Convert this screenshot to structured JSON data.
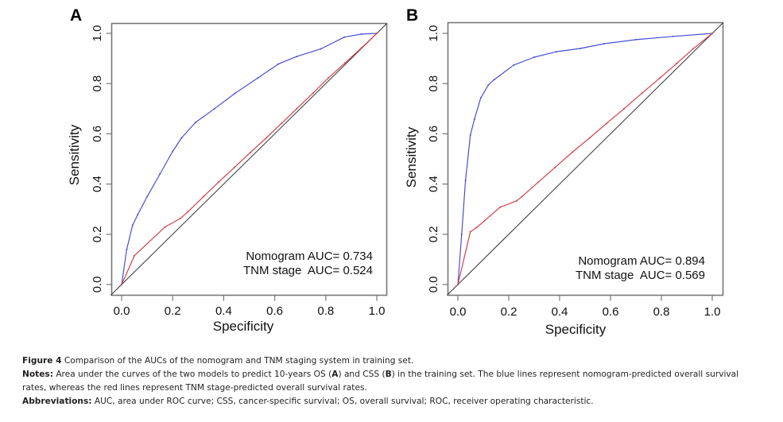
{
  "chart_data": [
    {
      "type": "line",
      "panel_label": "A",
      "title": "",
      "xlabel": "Specificity",
      "ylabel": "Sensitivity",
      "xlim": [
        0,
        1
      ],
      "ylim": [
        0,
        1
      ],
      "x_ticks": [
        "0.0",
        "0.2",
        "0.4",
        "0.6",
        "0.8",
        "1.0"
      ],
      "y_ticks": [
        "0.0",
        "0.2",
        "0.4",
        "0.6",
        "0.8",
        "1.0"
      ],
      "grid": false,
      "annotations": [
        "Nomogram AUC= 0.734",
        "TNM stage  AUC= 0.524"
      ],
      "annotation_placement": "bottom-right",
      "series": [
        {
          "name": "Nomogram",
          "color": "#4a4fd0",
          "x": [
            0.0,
            0.02,
            0.043,
            0.063,
            0.1,
            0.15,
            0.2,
            0.235,
            0.29,
            0.364,
            0.444,
            0.533,
            0.614,
            0.686,
            0.78,
            0.873,
            0.94,
            1.0
          ],
          "y": [
            0.0,
            0.14,
            0.236,
            0.278,
            0.35,
            0.44,
            0.53,
            0.584,
            0.646,
            0.7,
            0.761,
            0.822,
            0.878,
            0.908,
            0.938,
            0.985,
            0.997,
            1.0
          ]
        },
        {
          "name": "TNM stage",
          "color": "#d0424a",
          "x": [
            0.0,
            0.05,
            0.17,
            0.23,
            0.26,
            0.321,
            0.38,
            0.442,
            0.504,
            0.567,
            0.627,
            0.686,
            0.75,
            0.81,
            0.875,
            0.94,
            1.0
          ],
          "y": [
            0.0,
            0.115,
            0.229,
            0.263,
            0.29,
            0.35,
            0.408,
            0.466,
            0.525,
            0.584,
            0.642,
            0.7,
            0.762,
            0.822,
            0.882,
            0.942,
            1.0
          ]
        },
        {
          "name": "Reference",
          "color": "#333333",
          "x": [
            0.0,
            1.0
          ],
          "y": [
            0.0,
            1.0
          ]
        }
      ]
    },
    {
      "type": "line",
      "panel_label": "B",
      "title": "",
      "xlabel": "Specificity",
      "ylabel": "Sensitivity",
      "xlim": [
        0,
        1
      ],
      "ylim": [
        0,
        1
      ],
      "x_ticks": [
        "0.0",
        "0.2",
        "0.4",
        "0.6",
        "0.8",
        "1.0"
      ],
      "y_ticks": [
        "0.0",
        "0.2",
        "0.4",
        "0.6",
        "0.8",
        "1.0"
      ],
      "grid": false,
      "annotations": [
        "Nomogram AUC= 0.894",
        "TNM stage  AUC= 0.569"
      ],
      "annotation_placement": "bottom-right",
      "series": [
        {
          "name": "Nomogram",
          "color": "#4a4fd0",
          "x": [
            0.0,
            0.015,
            0.03,
            0.049,
            0.065,
            0.09,
            0.12,
            0.143,
            0.22,
            0.3,
            0.387,
            0.481,
            0.575,
            0.7,
            0.846,
            1.0
          ],
          "y": [
            0.0,
            0.2,
            0.415,
            0.595,
            0.658,
            0.743,
            0.795,
            0.816,
            0.874,
            0.905,
            0.927,
            0.94,
            0.959,
            0.975,
            0.988,
            1.0
          ]
        },
        {
          "name": "TNM stage",
          "color": "#d0424a",
          "x": [
            0.0,
            0.049,
            0.075,
            0.166,
            0.231,
            0.252,
            0.315,
            0.382,
            0.45,
            0.518,
            0.585,
            0.653,
            0.724,
            0.794,
            0.86,
            0.924,
            1.0
          ],
          "y": [
            0.0,
            0.21,
            0.228,
            0.308,
            0.333,
            0.35,
            0.407,
            0.466,
            0.527,
            0.584,
            0.642,
            0.7,
            0.762,
            0.822,
            0.88,
            0.938,
            1.0
          ]
        },
        {
          "name": "Reference",
          "color": "#333333",
          "x": [
            0.0,
            1.0
          ],
          "y": [
            0.0,
            1.0
          ]
        }
      ]
    }
  ],
  "caption": {
    "figure_label": "Figure 4",
    "title": "Comparison of the AUCs of the nomogram and TNM staging system in training set.",
    "notes_label": "Notes:",
    "notes_part1": "Area under the curves of the two models to predict 10-years OS (",
    "notes_a": "A",
    "notes_part2": ") and CSS (",
    "notes_b": "B",
    "notes_part3": ") in the training set. The blue lines represent nomogram-predicted overall survival",
    "notes_line2": "rates, whereas the red lines represent TNM stage-predicted overall survival rates.",
    "abbrev_label": "Abbreviations:",
    "abbrev_text": "AUC, area under ROC curve; CSS, cancer-specific survival; OS, overall survival; ROC, receiver operating characteristic."
  }
}
